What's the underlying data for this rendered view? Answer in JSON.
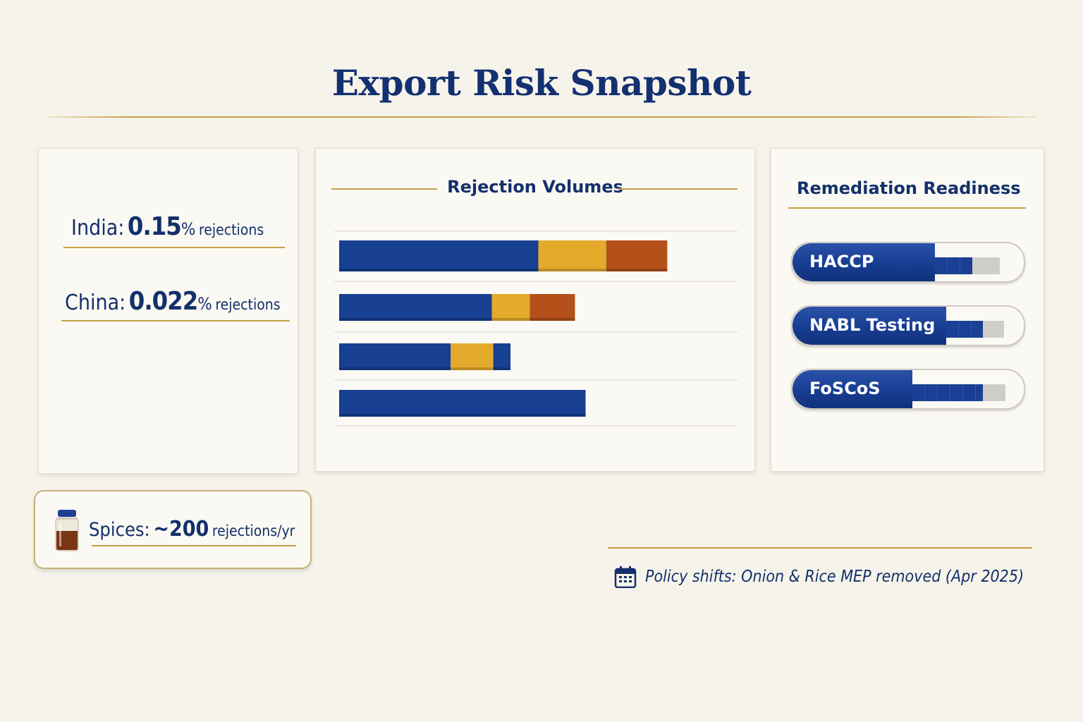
{
  "title": "Export Risk Snapshot",
  "stats": {
    "india": {
      "country": "India:",
      "value": "0.15",
      "percent": "%",
      "unit": "rejections"
    },
    "china": {
      "country": "China:",
      "value": "0.022",
      "percent": "%",
      "unit": "rejections"
    }
  },
  "volumes": {
    "heading": "Rejection Volumes"
  },
  "chart_data": {
    "type": "bar",
    "orientation": "horizontal",
    "stacked": true,
    "title": "Rejection Volumes",
    "categories": [
      "",
      "",
      "",
      ""
    ],
    "series": [
      {
        "values": [
          300,
          230,
          168,
          371
        ],
        "color": "#173f92"
      },
      {
        "values": [
          102,
          57,
          64,
          0
        ],
        "color": "#e3aa2c"
      },
      {
        "values": [
          92,
          68,
          0,
          0
        ],
        "color": "#b4501a"
      },
      {
        "values": [
          0,
          0,
          26,
          0
        ],
        "color": "#173f92"
      }
    ],
    "xlim": [
      0,
      570
    ],
    "grid": true,
    "legend": "none",
    "axis_labels": "none"
  },
  "readiness": {
    "heading": "Remediation Readiness",
    "items": [
      {
        "label": "HACCP",
        "progress": 0.58
      },
      {
        "label": "NABL Testing",
        "progress": 0.64
      },
      {
        "label": "FoSCoS",
        "progress": 0.76
      }
    ]
  },
  "spices": {
    "label": "Spices:",
    "value": "~200",
    "unit": "rejections/yr",
    "icon": "spice-jar-icon"
  },
  "policy": {
    "text": "Policy shifts: Onion & Rice MEP removed (Apr 2025)",
    "icon": "calendar-icon"
  },
  "colors": {
    "navy": "#173f92",
    "gold": "#e3aa2c",
    "rust": "#b4501a",
    "rule": "#c8a046",
    "background": "#f6f3ea"
  }
}
